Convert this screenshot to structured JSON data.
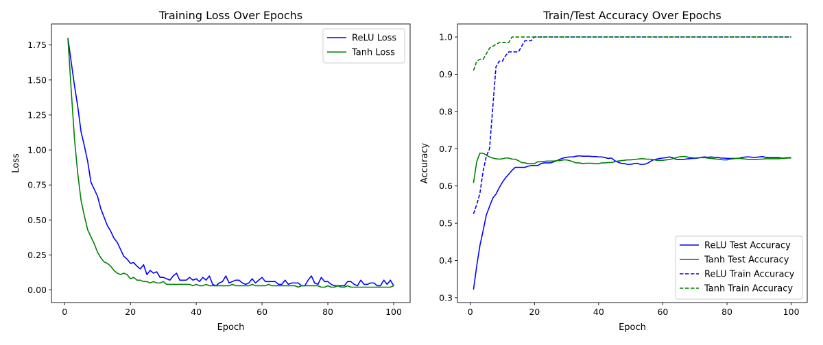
{
  "chart_data": [
    {
      "type": "line",
      "title": "Training Loss Over Epochs",
      "xlabel": "Epoch",
      "ylabel": "Loss",
      "xlim": [
        -4,
        105
      ],
      "ylim": [
        -0.09,
        1.9
      ],
      "xticks": [
        0,
        20,
        40,
        60,
        80,
        100
      ],
      "xtick_labels": [
        "0",
        "20",
        "40",
        "60",
        "80",
        "100"
      ],
      "yticks": [
        0,
        0.25,
        0.5,
        0.75,
        1.0,
        1.25,
        1.5,
        1.75
      ],
      "ytick_labels": [
        "0.00",
        "0.25",
        "0.50",
        "0.75",
        "1.00",
        "1.25",
        "1.50",
        "1.75"
      ],
      "grid": false,
      "legend": "top-right",
      "x": [
        1,
        2,
        3,
        4,
        5,
        6,
        7,
        8,
        9,
        10,
        11,
        12,
        13,
        14,
        15,
        16,
        17,
        18,
        19,
        20,
        21,
        22,
        23,
        24,
        25,
        26,
        27,
        28,
        29,
        30,
        31,
        32,
        33,
        34,
        35,
        36,
        37,
        38,
        39,
        40,
        41,
        42,
        43,
        44,
        45,
        46,
        47,
        48,
        49,
        50,
        51,
        52,
        53,
        54,
        55,
        56,
        57,
        58,
        59,
        60,
        61,
        62,
        63,
        64,
        65,
        66,
        67,
        68,
        69,
        70,
        71,
        72,
        73,
        74,
        75,
        76,
        77,
        78,
        79,
        80,
        81,
        82,
        83,
        84,
        85,
        86,
        87,
        88,
        89,
        90,
        91,
        92,
        93,
        94,
        95,
        96,
        97,
        98,
        99,
        100
      ],
      "series": [
        {
          "name": "ReLU Loss",
          "color": "#0000ff",
          "style": "solid",
          "values": [
            1.8,
            1.63,
            1.46,
            1.31,
            1.13,
            1.03,
            0.92,
            0.77,
            0.72,
            0.67,
            0.58,
            0.52,
            0.46,
            0.42,
            0.37,
            0.34,
            0.29,
            0.24,
            0.22,
            0.19,
            0.195,
            0.17,
            0.15,
            0.18,
            0.11,
            0.14,
            0.12,
            0.13,
            0.09,
            0.09,
            0.08,
            0.07,
            0.1,
            0.12,
            0.07,
            0.07,
            0.07,
            0.09,
            0.07,
            0.08,
            0.06,
            0.09,
            0.07,
            0.1,
            0.04,
            0.03,
            0.05,
            0.06,
            0.1,
            0.05,
            0.06,
            0.07,
            0.07,
            0.05,
            0.04,
            0.05,
            0.08,
            0.05,
            0.07,
            0.09,
            0.06,
            0.06,
            0.06,
            0.06,
            0.04,
            0.04,
            0.07,
            0.04,
            0.05,
            0.05,
            0.05,
            0.03,
            0.03,
            0.07,
            0.1,
            0.05,
            0.04,
            0.09,
            0.06,
            0.06,
            0.04,
            0.03,
            0.03,
            0.03,
            0.03,
            0.06,
            0.06,
            0.04,
            0.03,
            0.07,
            0.04,
            0.04,
            0.05,
            0.05,
            0.03,
            0.03,
            0.07,
            0.04,
            0.07,
            0.03
          ]
        },
        {
          "name": "Tanh Loss",
          "color": "#008000",
          "style": "solid",
          "values": [
            1.8,
            1.43,
            1.08,
            0.83,
            0.64,
            0.53,
            0.43,
            0.38,
            0.33,
            0.27,
            0.23,
            0.2,
            0.19,
            0.17,
            0.14,
            0.12,
            0.11,
            0.12,
            0.11,
            0.08,
            0.09,
            0.07,
            0.07,
            0.06,
            0.06,
            0.05,
            0.06,
            0.05,
            0.05,
            0.06,
            0.04,
            0.04,
            0.04,
            0.04,
            0.04,
            0.04,
            0.04,
            0.04,
            0.03,
            0.04,
            0.03,
            0.03,
            0.04,
            0.03,
            0.03,
            0.03,
            0.03,
            0.03,
            0.03,
            0.03,
            0.04,
            0.03,
            0.03,
            0.03,
            0.03,
            0.03,
            0.04,
            0.03,
            0.03,
            0.03,
            0.03,
            0.04,
            0.03,
            0.03,
            0.03,
            0.03,
            0.03,
            0.03,
            0.03,
            0.03,
            0.02,
            0.03,
            0.03,
            0.03,
            0.03,
            0.03,
            0.03,
            0.02,
            0.02,
            0.03,
            0.02,
            0.02,
            0.03,
            0.02,
            0.02,
            0.03,
            0.02,
            0.02,
            0.02,
            0.02,
            0.02,
            0.02,
            0.02,
            0.02,
            0.02,
            0.02,
            0.02,
            0.02,
            0.02,
            0.03
          ]
        }
      ]
    },
    {
      "type": "line",
      "title": "Train/Test Accuracy Over Epochs",
      "xlabel": "Epoch",
      "ylabel": "Accuracy",
      "xlim": [
        -4,
        105
      ],
      "ylim": [
        0.287,
        1.035
      ],
      "xticks": [
        0,
        20,
        40,
        60,
        80,
        100
      ],
      "xtick_labels": [
        "0",
        "20",
        "40",
        "60",
        "80",
        "100"
      ],
      "yticks": [
        0.3,
        0.4,
        0.5,
        0.6,
        0.7,
        0.8,
        0.9,
        1.0
      ],
      "ytick_labels": [
        "0.3",
        "0.4",
        "0.5",
        "0.6",
        "0.7",
        "0.8",
        "0.9",
        "1.0"
      ],
      "grid": false,
      "legend": "bottom-right",
      "x": [
        1,
        2,
        3,
        4,
        5,
        6,
        7,
        8,
        9,
        10,
        11,
        12,
        13,
        14,
        15,
        16,
        17,
        18,
        19,
        20,
        21,
        22,
        23,
        24,
        25,
        26,
        27,
        28,
        29,
        30,
        31,
        32,
        33,
        34,
        35,
        36,
        37,
        38,
        39,
        40,
        41,
        42,
        43,
        44,
        45,
        46,
        47,
        48,
        49,
        50,
        51,
        52,
        53,
        54,
        55,
        56,
        57,
        58,
        59,
        60,
        61,
        62,
        63,
        64,
        65,
        66,
        67,
        68,
        69,
        70,
        71,
        72,
        73,
        74,
        75,
        76,
        77,
        78,
        79,
        80,
        81,
        82,
        83,
        84,
        85,
        86,
        87,
        88,
        89,
        90,
        91,
        92,
        93,
        94,
        95,
        96,
        97,
        98,
        99,
        100
      ],
      "series": [
        {
          "name": "ReLU Test Accuracy",
          "color": "#0000ff",
          "style": "solid",
          "values": [
            0.322,
            0.385,
            0.44,
            0.48,
            0.522,
            0.545,
            0.567,
            0.578,
            0.595,
            0.61,
            0.622,
            0.632,
            0.642,
            0.65,
            0.65,
            0.65,
            0.65,
            0.653,
            0.655,
            0.655,
            0.655,
            0.66,
            0.662,
            0.662,
            0.662,
            0.665,
            0.668,
            0.672,
            0.675,
            0.677,
            0.678,
            0.678,
            0.68,
            0.681,
            0.68,
            0.68,
            0.68,
            0.679,
            0.679,
            0.678,
            0.678,
            0.676,
            0.674,
            0.675,
            0.668,
            0.664,
            0.661,
            0.66,
            0.658,
            0.658,
            0.66,
            0.661,
            0.658,
            0.658,
            0.66,
            0.665,
            0.67,
            0.672,
            0.674,
            0.675,
            0.676,
            0.678,
            0.676,
            0.672,
            0.671,
            0.671,
            0.672,
            0.673,
            0.674,
            0.674,
            0.675,
            0.677,
            0.678,
            0.677,
            0.678,
            0.677,
            0.677,
            0.675,
            0.675,
            0.674,
            0.674,
            0.674,
            0.674,
            0.675,
            0.677,
            0.678,
            0.678,
            0.677,
            0.677,
            0.678,
            0.679,
            0.677,
            0.676,
            0.676,
            0.676,
            0.676,
            0.675,
            0.675,
            0.676,
            0.676
          ]
        },
        {
          "name": "Tanh Test Accuracy",
          "color": "#008000",
          "style": "solid",
          "values": [
            0.608,
            0.665,
            0.688,
            0.688,
            0.683,
            0.678,
            0.675,
            0.673,
            0.672,
            0.673,
            0.675,
            0.675,
            0.672,
            0.672,
            0.668,
            0.663,
            0.662,
            0.66,
            0.66,
            0.66,
            0.665,
            0.665,
            0.666,
            0.667,
            0.667,
            0.667,
            0.668,
            0.668,
            0.67,
            0.67,
            0.668,
            0.665,
            0.662,
            0.662,
            0.66,
            0.661,
            0.661,
            0.661,
            0.66,
            0.66,
            0.662,
            0.662,
            0.663,
            0.663,
            0.665,
            0.667,
            0.668,
            0.669,
            0.67,
            0.67,
            0.671,
            0.672,
            0.673,
            0.673,
            0.672,
            0.672,
            0.671,
            0.669,
            0.669,
            0.669,
            0.67,
            0.671,
            0.673,
            0.676,
            0.678,
            0.679,
            0.679,
            0.677,
            0.676,
            0.675,
            0.676,
            0.676,
            0.676,
            0.675,
            0.674,
            0.673,
            0.672,
            0.671,
            0.67,
            0.67,
            0.672,
            0.673,
            0.674,
            0.674,
            0.673,
            0.672,
            0.671,
            0.671,
            0.671,
            0.672,
            0.672,
            0.673,
            0.673,
            0.673,
            0.673,
            0.673,
            0.674,
            0.674,
            0.675,
            0.675
          ]
        },
        {
          "name": "ReLU Train Accuracy",
          "color": "#0000ff",
          "style": "dashed",
          "values": [
            0.525,
            0.55,
            0.58,
            0.64,
            0.68,
            0.7,
            0.81,
            0.92,
            0.935,
            0.935,
            0.95,
            0.96,
            0.96,
            0.96,
            0.96,
            0.975,
            0.99,
            0.99,
            0.99,
            1.0,
            1.0,
            1.0,
            1.0,
            1.0,
            1.0,
            1.0,
            1.0,
            1.0,
            1.0,
            1.0,
            1.0,
            1.0,
            1.0,
            1.0,
            1.0,
            1.0,
            1.0,
            1.0,
            1.0,
            1.0,
            1.0,
            1.0,
            1.0,
            1.0,
            1.0,
            1.0,
            1.0,
            1.0,
            1.0,
            1.0,
            1.0,
            1.0,
            1.0,
            1.0,
            1.0,
            1.0,
            1.0,
            1.0,
            1.0,
            1.0,
            1.0,
            1.0,
            1.0,
            1.0,
            1.0,
            1.0,
            1.0,
            1.0,
            1.0,
            1.0,
            1.0,
            1.0,
            1.0,
            1.0,
            1.0,
            1.0,
            1.0,
            1.0,
            1.0,
            1.0,
            1.0,
            1.0,
            1.0,
            1.0,
            1.0,
            1.0,
            1.0,
            1.0,
            1.0,
            1.0,
            1.0,
            1.0,
            1.0,
            1.0,
            1.0,
            1.0,
            1.0,
            1.0,
            1.0,
            1.0
          ]
        },
        {
          "name": "Tanh Train Accuracy",
          "color": "#008000",
          "style": "dashed",
          "values": [
            0.91,
            0.935,
            0.94,
            0.94,
            0.955,
            0.97,
            0.975,
            0.98,
            0.985,
            0.985,
            0.985,
            0.985,
            1.0,
            1.0,
            1.0,
            1.0,
            1.0,
            1.0,
            1.0,
            1.0,
            1.0,
            1.0,
            1.0,
            1.0,
            1.0,
            1.0,
            1.0,
            1.0,
            1.0,
            1.0,
            1.0,
            1.0,
            1.0,
            1.0,
            1.0,
            1.0,
            1.0,
            1.0,
            1.0,
            1.0,
            1.0,
            1.0,
            1.0,
            1.0,
            1.0,
            1.0,
            1.0,
            1.0,
            1.0,
            1.0,
            1.0,
            1.0,
            1.0,
            1.0,
            1.0,
            1.0,
            1.0,
            1.0,
            1.0,
            1.0,
            1.0,
            1.0,
            1.0,
            1.0,
            1.0,
            1.0,
            1.0,
            1.0,
            1.0,
            1.0,
            1.0,
            1.0,
            1.0,
            1.0,
            1.0,
            1.0,
            1.0,
            1.0,
            1.0,
            1.0,
            1.0,
            1.0,
            1.0,
            1.0,
            1.0,
            1.0,
            1.0,
            1.0,
            1.0,
            1.0,
            1.0,
            1.0,
            1.0,
            1.0,
            1.0,
            1.0,
            1.0,
            1.0,
            1.0,
            1.0
          ]
        }
      ]
    }
  ]
}
